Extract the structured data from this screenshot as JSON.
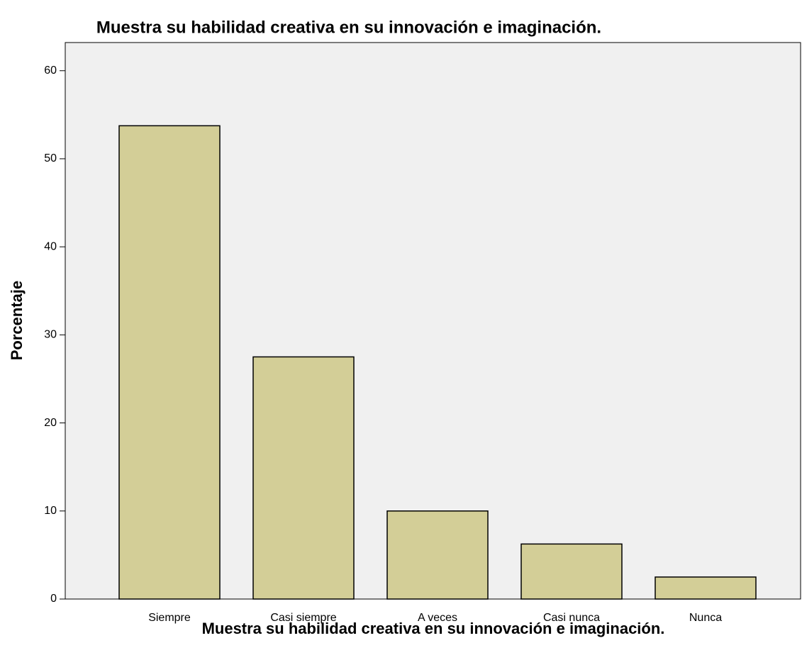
{
  "chart_data": {
    "type": "bar",
    "title": "Muestra su habilidad creativa en su innovación e imaginación.",
    "x_label": "Muestra su habilidad creativa en su innovación e imaginación.",
    "y_label": "Porcentaje",
    "categories": [
      "Siempre",
      "Casi siempre",
      "A veces",
      "Casi nunca",
      "Nunca"
    ],
    "values": [
      53.75,
      27.5,
      10,
      6.25,
      2.5
    ],
    "color": "#d3ce97",
    "ylim": [
      0,
      63.2
    ],
    "yticks": [
      0,
      10,
      20,
      30,
      40,
      50,
      60
    ],
    "grid": false
  }
}
